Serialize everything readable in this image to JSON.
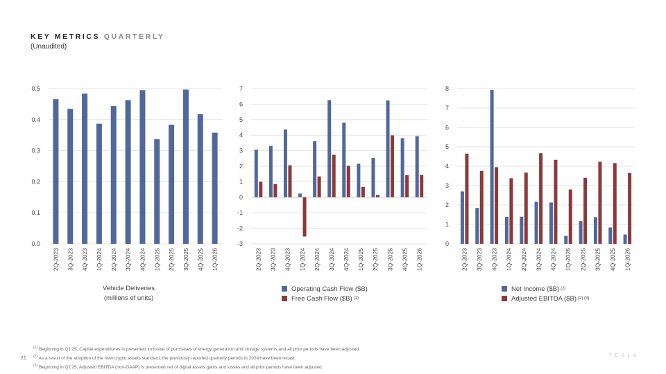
{
  "header": {
    "title_part1": "KEY METRICS",
    "title_part2": "QUARTERLY",
    "subtitle": "(Unaudited)"
  },
  "colors": {
    "blue": "#50689a",
    "red": "#8b3a3a",
    "grid": "#e3e3e3"
  },
  "chart_data": [
    {
      "type": "bar",
      "categories": [
        "2Q-2023",
        "3Q-2023",
        "4Q-2023",
        "1Q-2024",
        "2Q-2024",
        "3Q-2024",
        "4Q-2024",
        "1Q-2025",
        "2Q-2025",
        "3Q-2025",
        "4Q-2025",
        "1Q-2026"
      ],
      "series": [
        {
          "values": [
            0.466,
            0.435,
            0.484,
            0.387,
            0.444,
            0.463,
            0.495,
            0.337,
            0.384,
            0.497,
            0.418,
            0.358
          ]
        }
      ],
      "ylim": [
        0,
        0.5
      ],
      "yticks": [
        "0.0",
        "0.1",
        "0.2",
        "0.3",
        "0.4",
        "0.5"
      ],
      "xlabel": "Vehicle Deliveries",
      "xlabel2": "(millions of units)",
      "grid": true
    },
    {
      "type": "bar",
      "categories": [
        "2Q-2023",
        "3Q-2023",
        "4Q-2023",
        "1Q-2024",
        "2Q-2024",
        "3Q-2024",
        "4Q-2024",
        "1Q-2025",
        "2Q-2025",
        "3Q-2025",
        "4Q-2025",
        "1Q-2026"
      ],
      "series": [
        {
          "name": "Operating Cash Flow ($B)",
          "values": [
            3.07,
            3.31,
            4.37,
            0.24,
            3.61,
            6.26,
            4.81,
            2.16,
            2.54,
            6.24,
            3.81,
            3.94
          ]
        },
        {
          "name": "Free Cash Flow ($B)",
          "note": "(1)",
          "values": [
            1.0,
            0.85,
            2.06,
            -2.53,
            1.34,
            2.74,
            2.03,
            0.66,
            0.15,
            3.99,
            1.42,
            1.44
          ]
        }
      ],
      "ylim": [
        -3,
        7
      ],
      "yticks": [
        "-3",
        "-2",
        "-1",
        "0",
        "1",
        "2",
        "3",
        "4",
        "5",
        "6",
        "7"
      ],
      "grid": true
    },
    {
      "type": "bar",
      "categories": [
        "2Q-2023",
        "3Q-2023",
        "4Q-2023",
        "1Q-2024",
        "2Q-2024",
        "3Q-2024",
        "4Q-2024",
        "1Q-2025",
        "2Q-2025",
        "3Q-2025",
        "4Q-2025",
        "1Q-2026"
      ],
      "series": [
        {
          "name": "Net Income ($B)",
          "note": "(2)",
          "values": [
            2.7,
            1.85,
            7.93,
            1.39,
            1.4,
            2.17,
            2.13,
            0.41,
            1.17,
            1.37,
            0.84,
            0.48
          ]
        },
        {
          "name": "Adjusted EBITDA ($B)",
          "note": "(2) (3)",
          "values": [
            4.65,
            3.76,
            3.95,
            3.38,
            3.67,
            4.67,
            4.33,
            2.8,
            3.4,
            4.23,
            4.16,
            3.65
          ]
        }
      ],
      "ylim": [
        0,
        8
      ],
      "yticks": [
        "0",
        "1",
        "2",
        "3",
        "4",
        "5",
        "6",
        "7",
        "8"
      ],
      "grid": true
    }
  ],
  "footnotes": [
    {
      "mark": "(1)",
      "text": "Beginning in Q1'25, Capital expenditures is presented inclusive of purchases of energy generation and storage systems and all prior periods have been adjusted."
    },
    {
      "mark": "(2)",
      "text": "As a result of the adoption of the new crypto assets standard, the previously reported quarterly periods in 2024 have been recast."
    },
    {
      "mark": "(3)",
      "text": "Beginning in Q1'25, Adjusted EBITDA (non-GAAP) is presented net of digital assets gains and losses and all prior periods have been adjusted."
    }
  ],
  "page_number": "21",
  "brand": "TESLA"
}
